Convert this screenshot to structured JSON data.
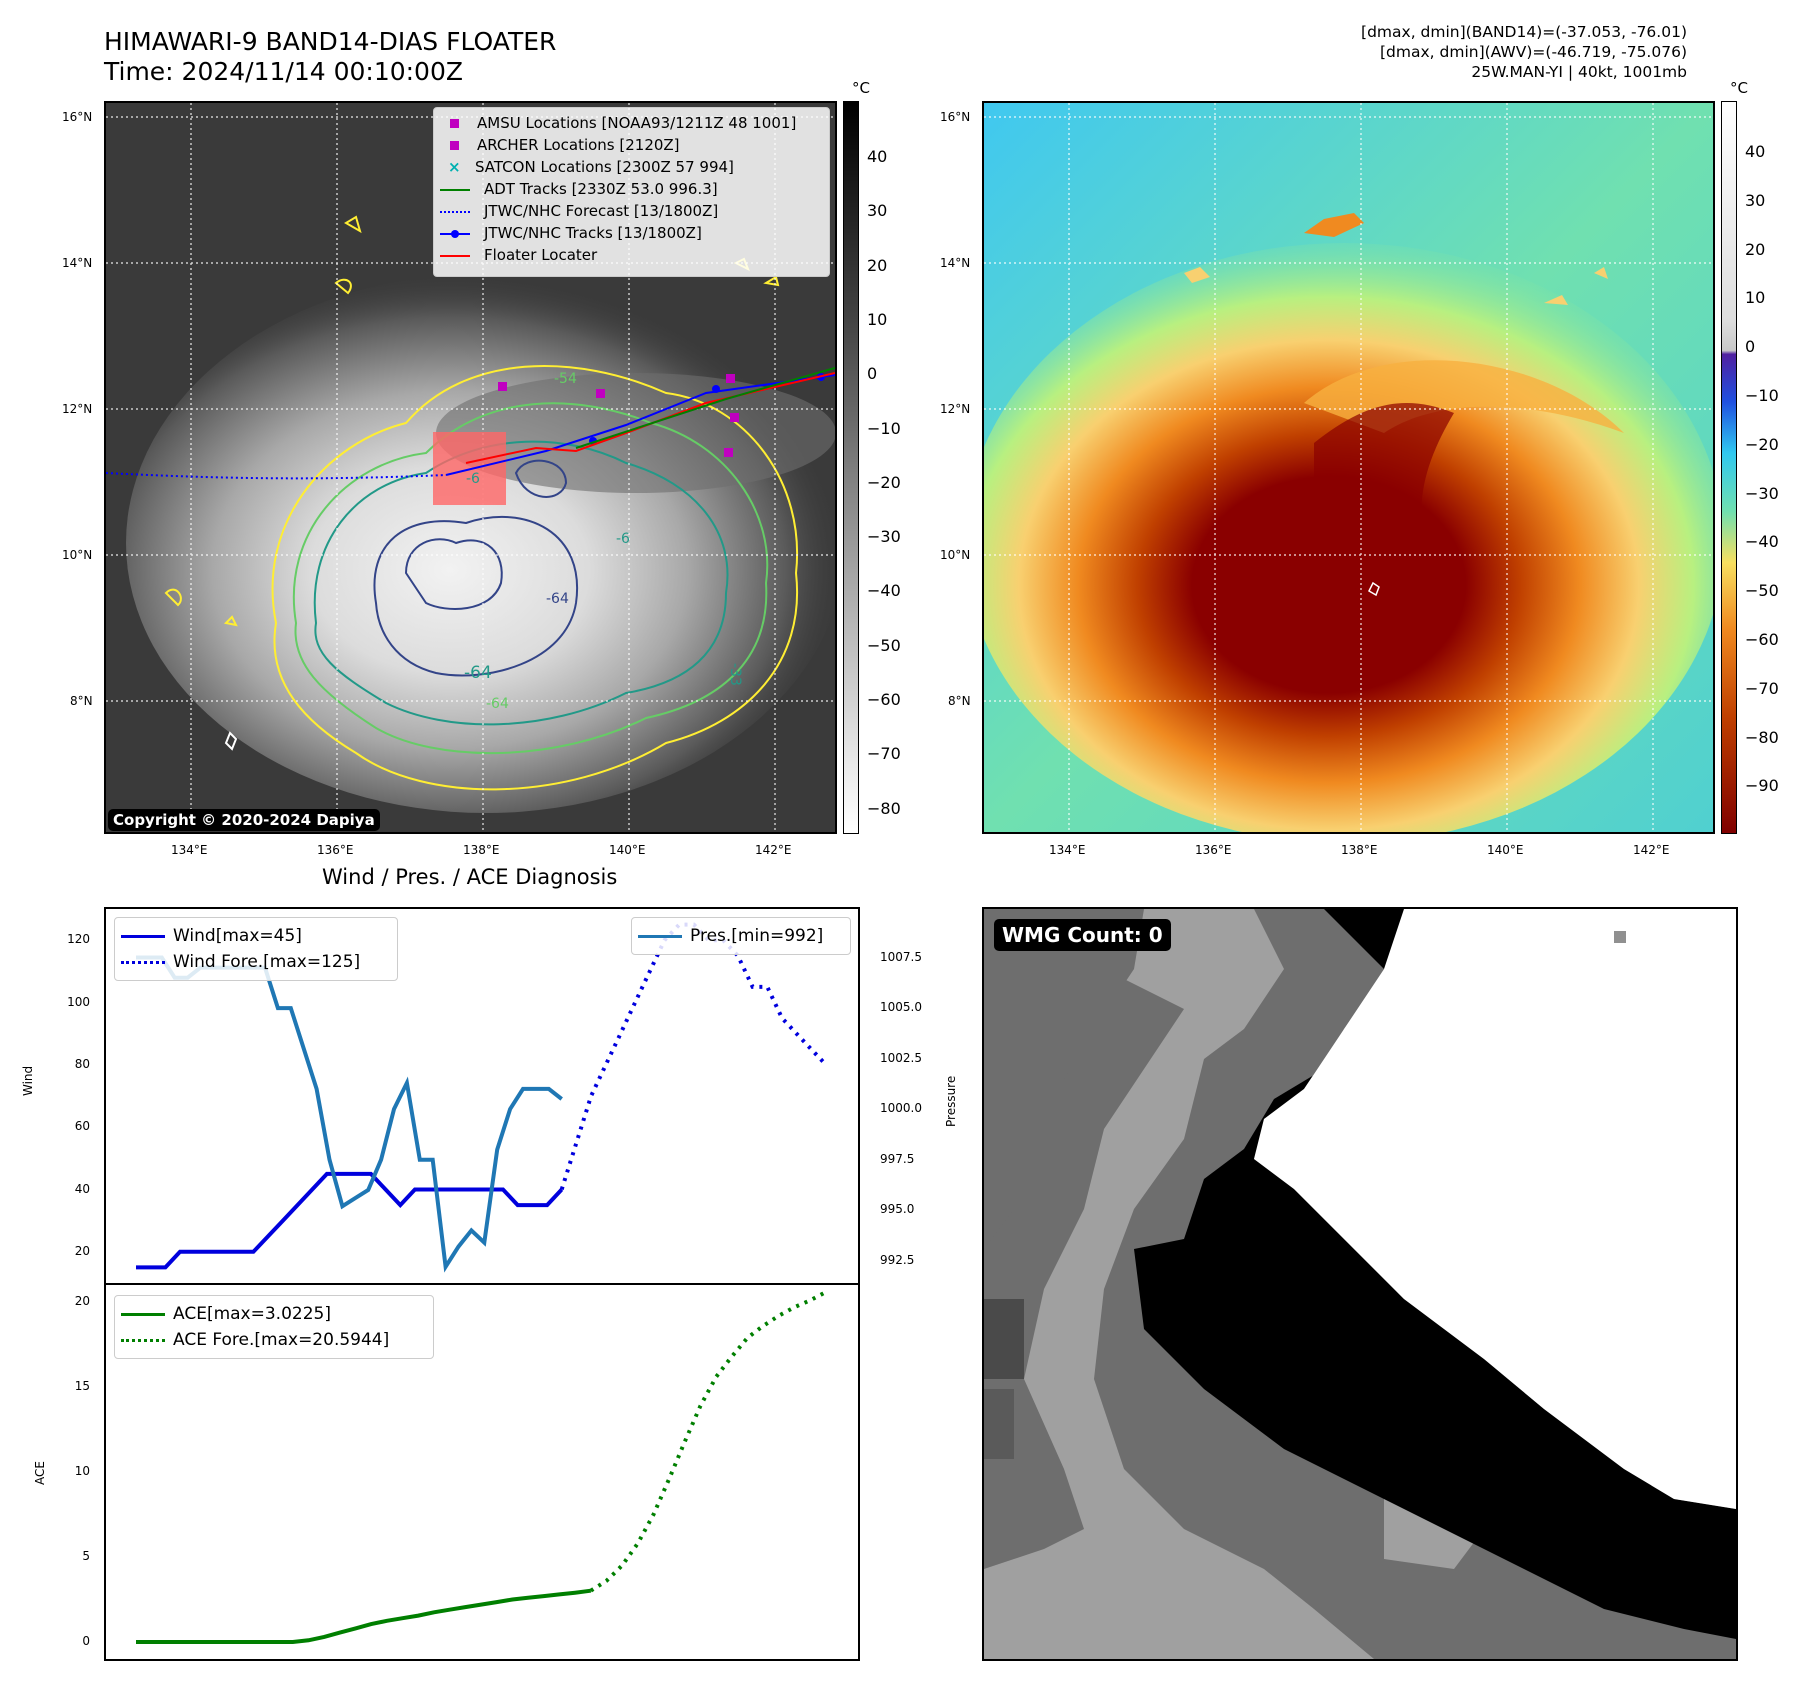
{
  "header": {
    "title_line1": "HIMAWARI-9 BAND14-DIAS FLOATER",
    "title_line2": "Time: 2024/11/14 00:10:00Z",
    "right_line1": "[dmax, dmin](BAND14)=(-37.053, -76.01)",
    "right_line2": "[dmax, dmin](AWV)=(-46.719, -75.076)",
    "right_line3": "25W.MAN-YI | 40kt, 1001mb"
  },
  "maps": {
    "lat_labels": [
      "16°N",
      "14°N",
      "12°N",
      "10°N",
      "8°N"
    ],
    "lon_labels": [
      "134°E",
      "136°E",
      "138°E",
      "140°E",
      "142°E"
    ],
    "copyright": "Copyright © 2020-2024 Dapiya",
    "contour_labels": [
      "-54",
      "-64",
      "-6",
      "-6",
      "-64",
      "-64",
      "-33"
    ],
    "colorbar_unit": "°C",
    "colorbar_left_ticks": [
      "40",
      "30",
      "20",
      "10",
      "0",
      "−10",
      "−20",
      "−30",
      "−40",
      "−50",
      "−60",
      "−70",
      "−80"
    ],
    "colorbar_right_ticks": [
      "40",
      "30",
      "20",
      "10",
      "0",
      "−10",
      "−20",
      "−30",
      "−40",
      "−50",
      "−60",
      "−70",
      "−80",
      "−90"
    ],
    "legend": [
      {
        "label": "AMSU Locations [NOAA93/1211Z 48 1001]",
        "color": "#c000c0",
        "marker": "square"
      },
      {
        "label": "ARCHER Locations [2120Z]",
        "color": "#c000c0",
        "marker": "square"
      },
      {
        "label": "SATCON Locations [2300Z 57 994]",
        "color": "#00b0b0",
        "marker": "x"
      },
      {
        "label": "ADT Tracks [2330Z 53.0 996.3]",
        "color": "#008000",
        "marker": "line"
      },
      {
        "label": "JTWC/NHC Forecast [13/1800Z]",
        "color": "#0000ff",
        "marker": "dotted"
      },
      {
        "label": "JTWC/NHC Tracks [13/1800Z]",
        "color": "#0000ff",
        "marker": "line-dot"
      },
      {
        "label": "Floater Locater",
        "color": "#ff0000",
        "marker": "line"
      }
    ]
  },
  "diag": {
    "title": "Wind / Pres. / ACE Diagnosis",
    "wind_ylabel": "Wind",
    "pres_ylabel": "Pressure",
    "ace_ylabel": "ACE",
    "wind_ticks": [
      "120",
      "100",
      "80",
      "60",
      "40",
      "20"
    ],
    "pres_ticks": [
      "1007.5",
      "1005.0",
      "1002.5",
      "1000.0",
      "997.5",
      "995.0",
      "992.5"
    ],
    "ace_ticks": [
      "20",
      "15",
      "10",
      "5",
      "0"
    ],
    "wind_legend_1": "Wind[max=45]",
    "wind_legend_2": "Wind Fore.[max=125]",
    "pres_legend": "Pres.[min=992]",
    "ace_legend_1": "ACE[max=3.0225]",
    "ace_legend_2": "ACE Fore.[max=20.5944]"
  },
  "wmg": {
    "count_label": "WMG Count: 0"
  },
  "chart_data": [
    {
      "type": "line",
      "title": "Wind / Pres. / ACE Diagnosis",
      "ylabel": "Wind",
      "ylim": [
        10,
        130
      ],
      "series": [
        {
          "name": "Wind[max=45]",
          "color": "#0000dd",
          "style": "solid",
          "values": [
            15,
            15,
            15,
            20,
            20,
            20,
            20,
            20,
            20,
            25,
            30,
            35,
            40,
            45,
            45,
            45,
            45,
            40,
            35,
            40,
            40,
            40,
            40,
            40,
            40,
            40,
            35,
            35,
            35,
            40
          ]
        },
        {
          "name": "Wind Fore.[max=125]",
          "color": "#0000dd",
          "style": "dotted",
          "values": [
            40,
            55,
            70,
            80,
            90,
            100,
            110,
            120,
            125,
            125,
            120,
            120,
            115,
            105,
            105,
            95,
            90,
            85,
            80
          ]
        }
      ],
      "secondary": {
        "ylabel": "Pressure",
        "ylim": [
          991.4,
          1009.9
        ],
        "series": [
          {
            "name": "Pres.[min=992]",
            "color": "#1f77b4",
            "style": "solid",
            "values": [
              1007.5,
              1007.5,
              1007.5,
              1006.5,
              1006.5,
              1007,
              1007,
              1007,
              1007,
              1007,
              1007,
              1005,
              1005,
              1003,
              1001,
              997.5,
              995.2,
              995.6,
              996,
              997.5,
              1000,
              1001.3,
              997.5,
              997.5,
              992.2,
              993.2,
              994.0,
              993.4,
              998,
              1000,
              1001,
              1001,
              1001,
              1000.5
            ]
          }
        ]
      }
    },
    {
      "type": "line",
      "ylabel": "ACE",
      "ylim": [
        -1,
        21
      ],
      "series": [
        {
          "name": "ACE[max=3.0225]",
          "color": "#007f00",
          "style": "solid",
          "values": [
            0,
            0,
            0,
            0,
            0,
            0,
            0,
            0,
            0,
            0,
            0,
            0.1,
            0.3,
            0.55,
            0.8,
            1.05,
            1.25,
            1.4,
            1.55,
            1.75,
            1.9,
            2.05,
            2.2,
            2.35,
            2.5,
            2.6,
            2.7,
            2.8,
            2.9,
            3.02
          ]
        },
        {
          "name": "ACE Fore.[max=20.5944]",
          "color": "#007f00",
          "style": "dotted",
          "values": [
            3.02,
            3.6,
            4.5,
            5.8,
            7.5,
            9.6,
            11.8,
            13.9,
            15.6,
            16.8,
            17.9,
            18.6,
            19.2,
            19.7,
            20.1,
            20.59
          ]
        }
      ]
    }
  ]
}
